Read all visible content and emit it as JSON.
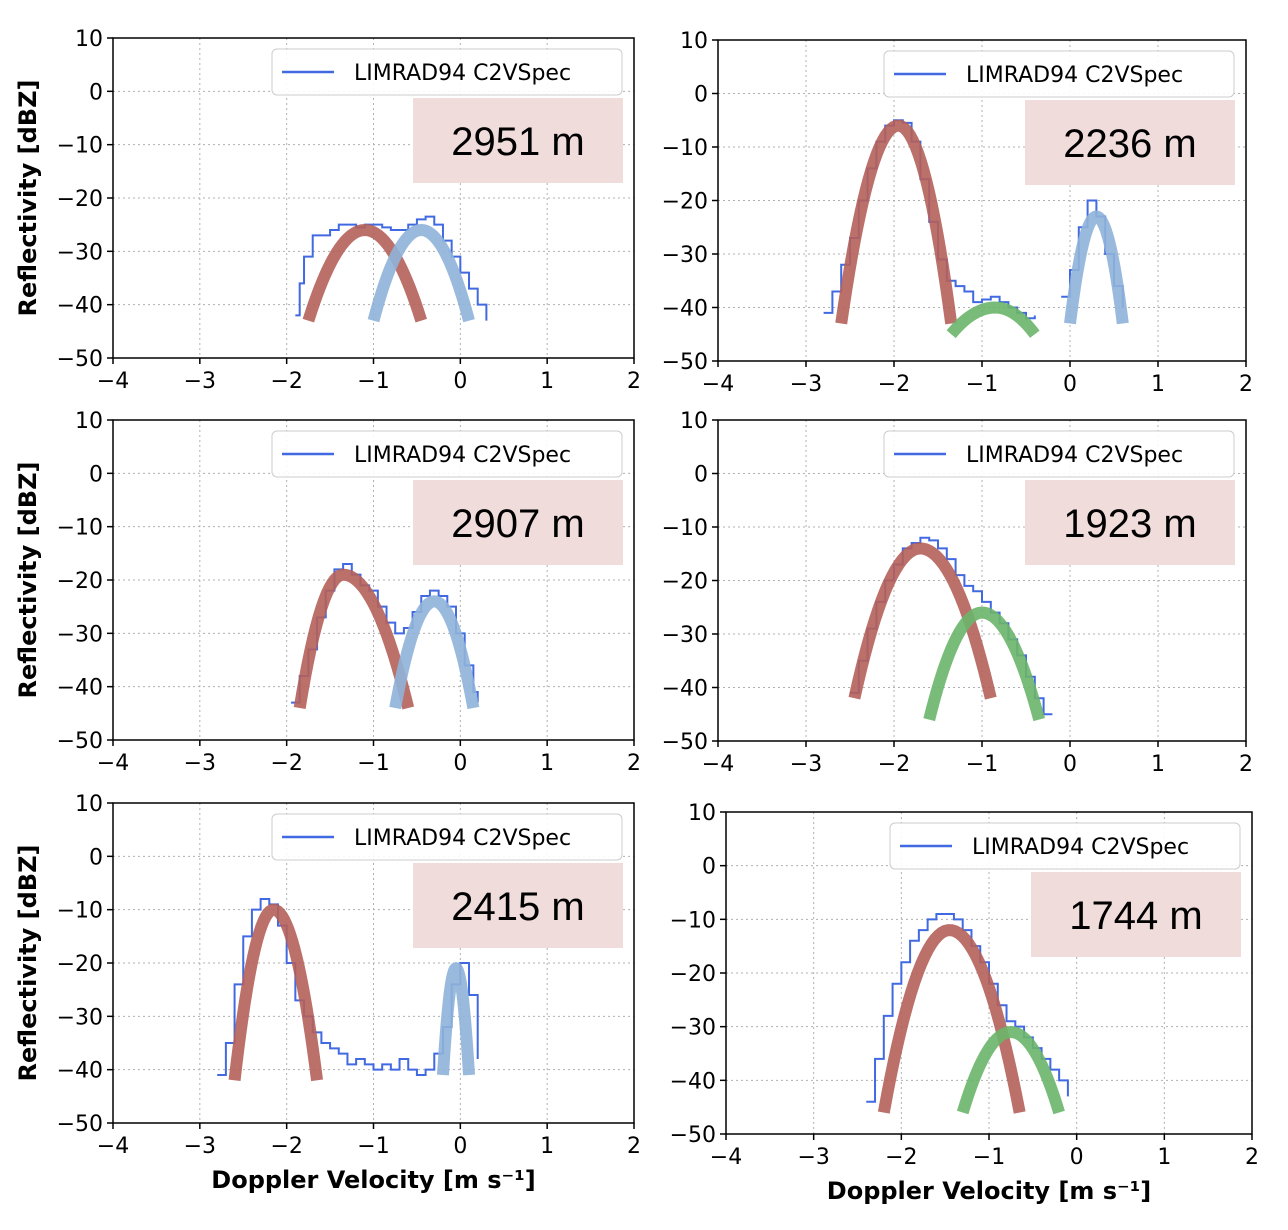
{
  "chart_data": [
    {
      "type": "line",
      "panel": "top-left",
      "height_label": "2951 m",
      "xlabel": "",
      "ylabel": "Reflectivity [dBZ]",
      "xlim": [
        -4,
        2
      ],
      "ylim": [
        -50,
        10
      ],
      "xticks": [
        "−4",
        "−3",
        "−2",
        "−1",
        "0",
        "1",
        "2"
      ],
      "yticks": [
        "10",
        "0",
        "−10",
        "−20",
        "−30",
        "−40",
        "−50"
      ],
      "grid": true,
      "legend": {
        "position": "top-right",
        "entries": [
          "LIMRAD94 C2VSpec"
        ]
      },
      "series": [
        {
          "name": "LIMRAD94 C2VSpec",
          "role": "spectrum",
          "color": "#4169e1",
          "x": [
            -1.9,
            -1.85,
            -1.8,
            -1.7,
            -1.6,
            -1.5,
            -1.4,
            -1.3,
            -1.2,
            -1.1,
            -1.0,
            -0.9,
            -0.8,
            -0.7,
            -0.6,
            -0.5,
            -0.4,
            -0.3,
            -0.2,
            -0.1,
            0.0,
            0.1,
            0.2,
            0.3
          ],
          "y": [
            -42,
            -36,
            -31,
            -27,
            -27,
            -26,
            -25,
            -25,
            -25.5,
            -25,
            -25,
            -25.5,
            -26,
            -26,
            -25,
            -24,
            -23.5,
            -25,
            -28,
            -31,
            -34,
            -37,
            -40,
            -43
          ]
        },
        {
          "role": "fit-peak-1",
          "color": "#b5605a",
          "peak_x": -1.1,
          "peak_y": -26,
          "x": [
            -1.75,
            -0.45
          ],
          "y_end": -43
        },
        {
          "role": "fit-peak-2",
          "color": "#8fb3d9",
          "peak_x": -0.45,
          "peak_y": -26,
          "x": [
            -1.0,
            0.1
          ],
          "y_end": -43
        }
      ]
    },
    {
      "type": "line",
      "panel": "top-right",
      "height_label": "2236 m",
      "xlabel": "",
      "ylabel": "",
      "xlim": [
        -4,
        2
      ],
      "ylim": [
        -50,
        10
      ],
      "xticks": [
        "−4",
        "−3",
        "−2",
        "−1",
        "0",
        "1",
        "2"
      ],
      "yticks": [
        "10",
        "0",
        "−10",
        "−20",
        "−30",
        "−40",
        "−50"
      ],
      "grid": true,
      "legend": {
        "position": "top-right",
        "entries": [
          "LIMRAD94 C2VSpec"
        ]
      },
      "series": [
        {
          "name": "LIMRAD94 C2VSpec",
          "role": "spectrum",
          "color": "#4169e1",
          "x": [
            -2.8,
            -2.7,
            -2.6,
            -2.5,
            -2.4,
            -2.3,
            -2.2,
            -2.1,
            -2.0,
            -1.9,
            -1.8,
            -1.7,
            -1.6,
            -1.5,
            -1.4,
            -1.3,
            -1.2,
            -1.1,
            -1.0,
            -0.9,
            -0.8,
            -0.7,
            -0.6,
            -0.5,
            -0.4,
            null,
            -0.1,
            0.0,
            0.1,
            0.2,
            0.3,
            0.4,
            0.5,
            0.6
          ],
          "y": [
            -41,
            -37,
            -32,
            -27,
            -20,
            -14,
            -9,
            -6,
            -5,
            -5.5,
            -9,
            -16,
            -24,
            -31,
            -35,
            -36,
            -37,
            -39,
            -38.5,
            -38,
            -39,
            -40,
            -41,
            -42,
            -41.5,
            null,
            -38,
            -33,
            -25,
            -20,
            -23,
            -30,
            -36,
            -40
          ]
        },
        {
          "role": "fit-peak-1",
          "color": "#b5605a",
          "peak_x": -1.95,
          "peak_y": -6,
          "x": [
            -2.6,
            -1.35
          ],
          "y_end": -43
        },
        {
          "role": "fit-peak-2",
          "color": "#8fb3d9",
          "peak_x": 0.3,
          "peak_y": -23,
          "x": [
            0.0,
            0.6
          ],
          "y_end": -43
        },
        {
          "role": "fit-peak-3",
          "color": "#6ab56a",
          "peak_x": -0.85,
          "peak_y": -40,
          "x": [
            -1.35,
            -0.4
          ],
          "y_end": -45
        }
      ]
    },
    {
      "type": "line",
      "panel": "middle-left",
      "height_label": "2907 m",
      "xlabel": "",
      "ylabel": "Reflectivity [dBZ]",
      "xlim": [
        -4,
        2
      ],
      "ylim": [
        -50,
        10
      ],
      "xticks": [
        "−4",
        "−3",
        "−2",
        "−1",
        "0",
        "1",
        "2"
      ],
      "yticks": [
        "10",
        "0",
        "−10",
        "−20",
        "−30",
        "−40",
        "−50"
      ],
      "grid": true,
      "legend": {
        "position": "top-right",
        "entries": [
          "LIMRAD94 C2VSpec"
        ]
      },
      "series": [
        {
          "name": "LIMRAD94 C2VSpec",
          "role": "spectrum",
          "color": "#4169e1",
          "x": [
            -1.95,
            -1.85,
            -1.75,
            -1.65,
            -1.55,
            -1.45,
            -1.35,
            -1.25,
            -1.15,
            -1.05,
            -0.95,
            -0.85,
            -0.75,
            -0.65,
            -0.55,
            -0.45,
            -0.35,
            -0.25,
            -0.15,
            -0.05,
            0.05,
            0.15,
            0.2
          ],
          "y": [
            -43,
            -38,
            -33,
            -27,
            -22,
            -18,
            -17,
            -19,
            -21,
            -22,
            -25,
            -28,
            -30,
            -29,
            -26,
            -23,
            -22,
            -23,
            -25,
            -30,
            -36,
            -41,
            -43
          ]
        },
        {
          "role": "fit-peak-1",
          "color": "#b5605a",
          "peak_x": -1.35,
          "peak_y": -19,
          "x": [
            -1.85,
            -0.6
          ],
          "y_end": -44
        },
        {
          "role": "fit-peak-2",
          "color": "#8fb3d9",
          "peak_x": -0.3,
          "peak_y": -24,
          "x": [
            -0.75,
            0.15
          ],
          "y_end": -44
        }
      ]
    },
    {
      "type": "line",
      "panel": "middle-right",
      "height_label": "1923 m",
      "xlabel": "",
      "ylabel": "",
      "xlim": [
        -4,
        2
      ],
      "ylim": [
        -50,
        10
      ],
      "xticks": [
        "−4",
        "−3",
        "−2",
        "−1",
        "0",
        "1",
        "2"
      ],
      "yticks": [
        "10",
        "0",
        "−10",
        "−20",
        "−30",
        "−40",
        "−50"
      ],
      "grid": true,
      "legend": {
        "position": "top-right",
        "entries": [
          "LIMRAD94 C2VSpec"
        ]
      },
      "series": [
        {
          "name": "LIMRAD94 C2VSpec",
          "role": "spectrum",
          "color": "#4169e1",
          "x": [
            -2.5,
            -2.4,
            -2.3,
            -2.2,
            -2.1,
            -2.0,
            -1.9,
            -1.8,
            -1.7,
            -1.6,
            -1.5,
            -1.4,
            -1.3,
            -1.2,
            -1.1,
            -1.0,
            -0.9,
            -0.8,
            -0.7,
            -0.6,
            -0.5,
            -0.4,
            -0.3,
            -0.2
          ],
          "y": [
            -41,
            -35,
            -29,
            -24,
            -20,
            -17,
            -14,
            -13,
            -12,
            -12.5,
            -14,
            -16,
            -19,
            -21,
            -22,
            -24,
            -26,
            -28,
            -31,
            -34,
            -38,
            -42,
            -45,
            -45
          ]
        },
        {
          "role": "fit-peak-1",
          "color": "#b5605a",
          "peak_x": -1.7,
          "peak_y": -14,
          "x": [
            -2.45,
            -0.9
          ],
          "y_end": -42
        },
        {
          "role": "fit-peak-3",
          "color": "#6ab56a",
          "peak_x": -1.0,
          "peak_y": -26,
          "x": [
            -1.6,
            -0.35
          ],
          "y_end": -46
        }
      ]
    },
    {
      "type": "line",
      "panel": "bottom-left",
      "height_label": "2415 m",
      "xlabel": "Doppler Velocity [m s⁻¹]",
      "ylabel": "Reflectivity [dBZ]",
      "xlim": [
        -4,
        2
      ],
      "ylim": [
        -50,
        10
      ],
      "xticks": [
        "−4",
        "−3",
        "−2",
        "−1",
        "0",
        "1",
        "2"
      ],
      "yticks": [
        "10",
        "0",
        "−10",
        "−20",
        "−30",
        "−40",
        "−50"
      ],
      "grid": true,
      "legend": {
        "position": "top-right",
        "entries": [
          "LIMRAD94 C2VSpec"
        ]
      },
      "series": [
        {
          "name": "LIMRAD94 C2VSpec",
          "role": "spectrum",
          "color": "#4169e1",
          "x": [
            -2.8,
            -2.7,
            -2.6,
            -2.5,
            -2.4,
            -2.3,
            -2.2,
            -2.1,
            -2.0,
            -1.9,
            -1.8,
            -1.7,
            -1.6,
            -1.5,
            -1.4,
            -1.3,
            -1.2,
            -1.1,
            -1.0,
            -0.9,
            -0.8,
            -0.7,
            -0.6,
            -0.5,
            -0.4,
            -0.3,
            -0.2,
            -0.1,
            0.0,
            0.1,
            0.2
          ],
          "y": [
            -41,
            -35,
            -24,
            -15,
            -10,
            -8,
            -9,
            -13,
            -20,
            -27,
            -30,
            -33,
            -35,
            -36,
            -37,
            -39,
            -38,
            -39,
            -40,
            -39,
            -40,
            -38,
            -40,
            -41,
            -40,
            -37,
            -32,
            -24,
            -20,
            -26,
            -38
          ]
        },
        {
          "role": "fit-peak-1",
          "color": "#b5605a",
          "peak_x": -2.15,
          "peak_y": -10,
          "x": [
            -2.6,
            -1.65
          ],
          "y_end": -42
        },
        {
          "role": "fit-peak-2",
          "color": "#8fb3d9",
          "peak_x": -0.05,
          "peak_y": -21,
          "x": [
            -0.2,
            0.1
          ],
          "y_end": -41
        }
      ]
    },
    {
      "type": "line",
      "panel": "bottom-right",
      "height_label": "1744 m",
      "xlabel": "Doppler Velocity [m s⁻¹]",
      "ylabel": "",
      "xlim": [
        -4,
        2
      ],
      "ylim": [
        -50,
        10
      ],
      "xticks": [
        "−4",
        "−3",
        "−2",
        "−1",
        "0",
        "1",
        "2"
      ],
      "yticks": [
        "10",
        "0",
        "−10",
        "−20",
        "−30",
        "−40",
        "−50"
      ],
      "grid": true,
      "legend": {
        "position": "top-right",
        "entries": [
          "LIMRAD94 C2VSpec"
        ]
      },
      "series": [
        {
          "name": "LIMRAD94 C2VSpec",
          "role": "spectrum",
          "color": "#4169e1",
          "x": [
            -2.4,
            -2.3,
            -2.2,
            -2.1,
            -2.0,
            -1.9,
            -1.8,
            -1.7,
            -1.6,
            -1.5,
            -1.4,
            -1.3,
            -1.2,
            -1.1,
            -1.0,
            -0.9,
            -0.8,
            -0.7,
            -0.6,
            -0.5,
            -0.4,
            -0.3,
            -0.2,
            -0.1
          ],
          "y": [
            -44,
            -36,
            -28,
            -22,
            -18,
            -14,
            -12,
            -10,
            -9,
            -9,
            -10,
            -12,
            -15,
            -18,
            -22,
            -26,
            -29,
            -30,
            -32,
            -34,
            -36,
            -38,
            -40,
            -43
          ]
        },
        {
          "role": "fit-peak-1",
          "color": "#b5605a",
          "peak_x": -1.45,
          "peak_y": -12,
          "x": [
            -2.2,
            -0.65
          ],
          "y_end": -46
        },
        {
          "role": "fit-peak-3",
          "color": "#6ab56a",
          "peak_x": -0.75,
          "peak_y": -31,
          "x": [
            -1.3,
            -0.2
          ],
          "y_end": -46
        }
      ]
    }
  ]
}
